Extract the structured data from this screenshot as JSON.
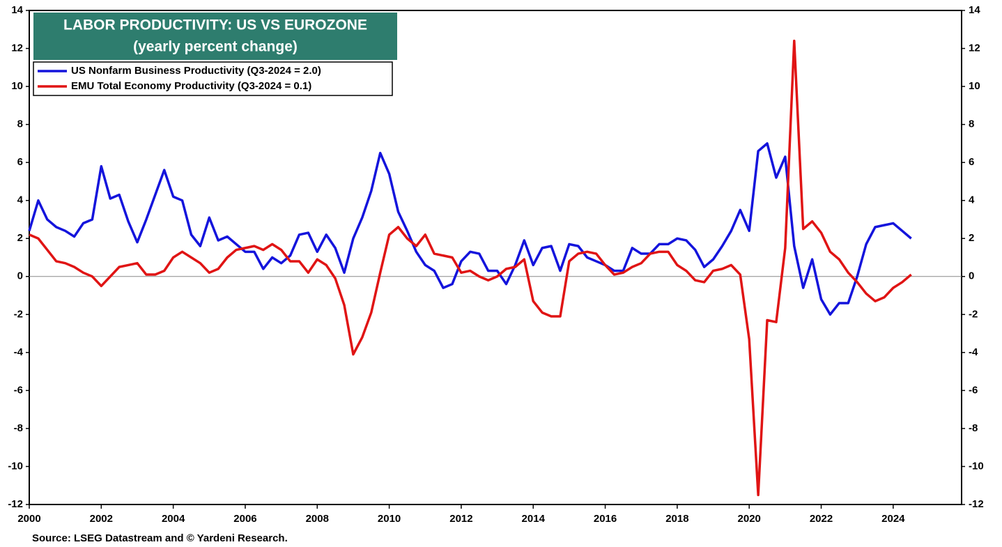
{
  "chart_data": {
    "type": "line",
    "title": "LABOR PRODUCTIVITY: US VS EUROZONE",
    "subtitle": "(yearly percent change)",
    "source": "Source: LSEG Datastream and © Yardeni Research.",
    "x": [
      2000,
      2000.25,
      2000.5,
      2000.75,
      2001,
      2001.25,
      2001.5,
      2001.75,
      2002,
      2002.25,
      2002.5,
      2002.75,
      2003,
      2003.25,
      2003.5,
      2003.75,
      2004,
      2004.25,
      2004.5,
      2004.75,
      2005,
      2005.25,
      2005.5,
      2005.75,
      2006,
      2006.25,
      2006.5,
      2006.75,
      2007,
      2007.25,
      2007.5,
      2007.75,
      2008,
      2008.25,
      2008.5,
      2008.75,
      2009,
      2009.25,
      2009.5,
      2009.75,
      2010,
      2010.25,
      2010.5,
      2010.75,
      2011,
      2011.25,
      2011.5,
      2011.75,
      2012,
      2012.25,
      2012.5,
      2012.75,
      2013,
      2013.25,
      2013.5,
      2013.75,
      2014,
      2014.25,
      2014.5,
      2014.75,
      2015,
      2015.25,
      2015.5,
      2015.75,
      2016,
      2016.25,
      2016.5,
      2016.75,
      2017,
      2017.25,
      2017.5,
      2017.75,
      2018,
      2018.25,
      2018.5,
      2018.75,
      2019,
      2019.25,
      2019.5,
      2019.75,
      2020,
      2020.25,
      2020.5,
      2020.75,
      2021,
      2021.25,
      2021.5,
      2021.75,
      2022,
      2022.25,
      2022.5,
      2022.75,
      2023,
      2023.25,
      2023.5,
      2023.75,
      2024,
      2024.25,
      2024.5
    ],
    "series": [
      {
        "name": "US Nonfarm Business Productivity (Q3-2024 = 2.0)",
        "color": "#1414dc",
        "values": [
          2.4,
          4.0,
          3.0,
          2.6,
          2.4,
          2.1,
          2.8,
          3.0,
          5.8,
          4.1,
          4.3,
          2.9,
          1.8,
          3.0,
          4.3,
          5.6,
          4.2,
          4.0,
          2.2,
          1.6,
          3.1,
          1.9,
          2.1,
          1.7,
          1.3,
          1.3,
          0.4,
          1.0,
          0.7,
          1.1,
          2.2,
          2.3,
          1.3,
          2.2,
          1.5,
          0.2,
          2.0,
          3.1,
          4.5,
          6.5,
          5.4,
          3.4,
          2.4,
          1.3,
          0.6,
          0.3,
          -0.6,
          -0.4,
          0.8,
          1.3,
          1.2,
          0.3,
          0.3,
          -0.4,
          0.6,
          1.9,
          0.6,
          1.5,
          1.6,
          0.3,
          1.7,
          1.6,
          1.0,
          0.8,
          0.6,
          0.3,
          0.3,
          1.5,
          1.2,
          1.2,
          1.7,
          1.7,
          2.0,
          1.9,
          1.4,
          0.5,
          0.9,
          1.6,
          2.4,
          3.5,
          2.4,
          6.6,
          7.0,
          5.2,
          6.3,
          1.6,
          -0.6,
          0.9,
          -1.2,
          -2.0,
          -1.4,
          -1.4,
          0.0,
          1.7,
          2.6,
          2.7,
          2.8,
          2.4,
          2.0
        ]
      },
      {
        "name": "EMU Total Economy Productivity (Q3-2024 = 0.1)",
        "color": "#e01414",
        "values": [
          2.2,
          2.0,
          1.4,
          0.8,
          0.7,
          0.5,
          0.2,
          0.0,
          -0.5,
          0.0,
          0.5,
          0.6,
          0.7,
          0.1,
          0.1,
          0.3,
          1.0,
          1.3,
          1.0,
          0.7,
          0.2,
          0.4,
          1.0,
          1.4,
          1.5,
          1.6,
          1.4,
          1.7,
          1.4,
          0.8,
          0.8,
          0.2,
          0.9,
          0.6,
          -0.1,
          -1.5,
          -4.1,
          -3.2,
          -1.9,
          0.2,
          2.2,
          2.6,
          2.0,
          1.6,
          2.2,
          1.2,
          1.1,
          1.0,
          0.2,
          0.3,
          0.0,
          -0.2,
          0.0,
          0.4,
          0.5,
          0.9,
          -1.3,
          -1.9,
          -2.1,
          -2.1,
          0.8,
          1.2,
          1.3,
          1.2,
          0.6,
          0.1,
          0.2,
          0.5,
          0.7,
          1.2,
          1.3,
          1.3,
          0.6,
          0.3,
          -0.2,
          -0.3,
          0.3,
          0.4,
          0.6,
          0.1,
          -3.3,
          -11.5,
          -2.3,
          -2.4,
          1.5,
          12.4,
          2.5,
          2.9,
          2.3,
          1.3,
          0.9,
          0.2,
          -0.3,
          -0.9,
          -1.3,
          -1.1,
          -0.6,
          -0.3,
          0.1
        ]
      }
    ],
    "xlim": [
      2000,
      2025.9
    ],
    "xticks": [
      2000,
      2002,
      2004,
      2006,
      2008,
      2010,
      2012,
      2014,
      2016,
      2018,
      2020,
      2022,
      2024
    ],
    "ylim": [
      -12,
      14
    ],
    "yticks": [
      -12,
      -10,
      -8,
      -6,
      -4,
      -2,
      0,
      2,
      4,
      6,
      8,
      10,
      12,
      14
    ],
    "y2lim": [
      -12,
      14
    ],
    "y2ticks": [
      -12,
      -10,
      -8,
      -6,
      -4,
      -2,
      0,
      2,
      4,
      6,
      8,
      10,
      12,
      14
    ],
    "legend": "upper left"
  }
}
